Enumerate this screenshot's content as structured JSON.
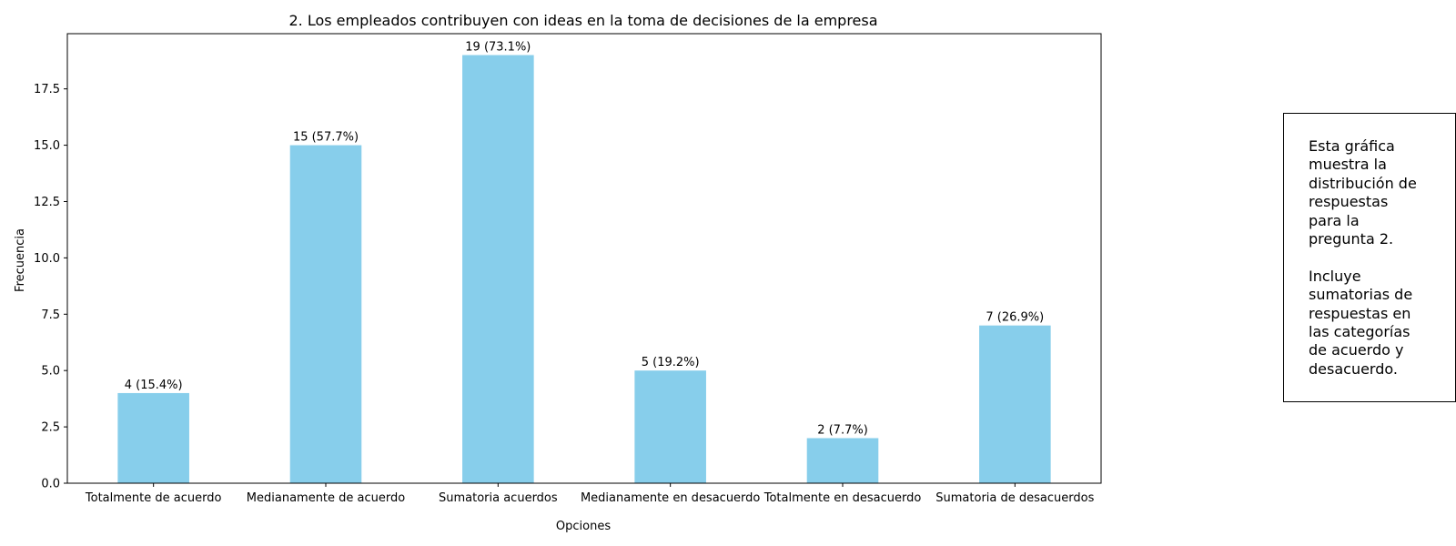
{
  "chart_data": {
    "type": "bar",
    "title": "2. Los empleados contribuyen con ideas en la toma de decisiones de la empresa",
    "xlabel": "Opciones",
    "ylabel": "Frecuencia",
    "categories": [
      "Totalmente de acuerdo",
      "Medianamente de acuerdo",
      "Sumatoria acuerdos",
      "Medianamente en desacuerdo",
      "Totalmente en desacuerdo",
      "Sumatoria de desacuerdos"
    ],
    "values": [
      4,
      15,
      19,
      5,
      2,
      7
    ],
    "data_labels": [
      "4 (15.4%)",
      "15 (57.7%)",
      "19 (73.1%)",
      "5 (19.2%)",
      "2 (7.7%)",
      "7 (26.9%)"
    ],
    "ylim": [
      0,
      19.95
    ],
    "yticks": [
      0,
      2.5,
      5,
      7.5,
      10,
      12.5,
      15,
      17.5
    ],
    "ytick_labels": [
      "0.0",
      "2.5",
      "5.0",
      "7.5",
      "10.0",
      "12.5",
      "15.0",
      "17.5"
    ],
    "grid": false,
    "legend": "none",
    "bar_color": "#87CEEB"
  },
  "annotation": {
    "text": "Esta gráfica\nmuestra la\ndistribución de\nrespuestas\npara la\npregunta 2.\n\nIncluye\nsumatorias de\nrespuestas en\nlas categorías\nde acuerdo y\ndesacuerdo."
  }
}
